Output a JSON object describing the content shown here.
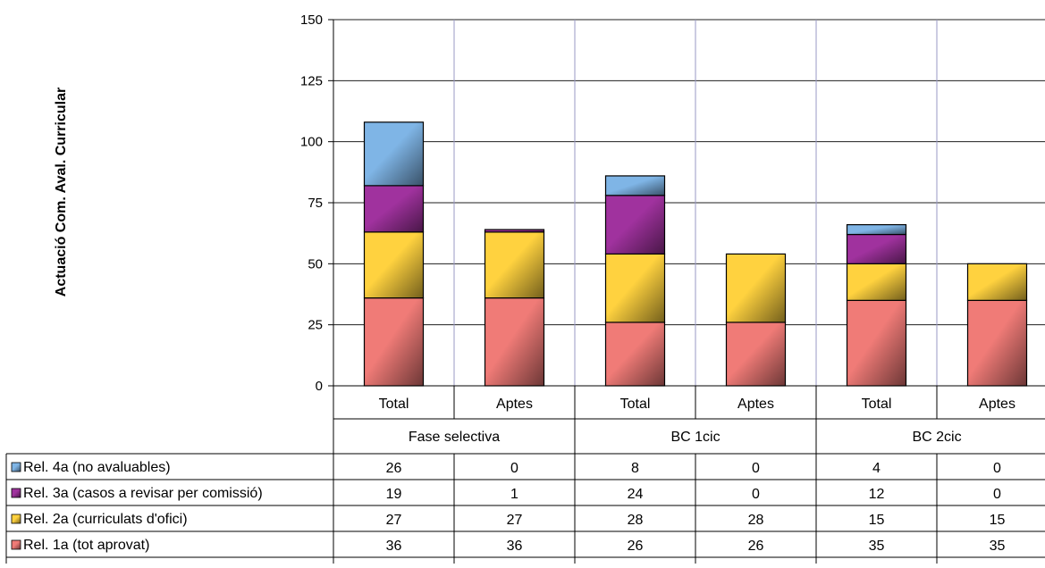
{
  "chart_data": {
    "type": "bar",
    "stacked": true,
    "ylabel": "Actuació Com. Aval. Curricular",
    "ylim": [
      0,
      150
    ],
    "yticks": [
      0,
      25,
      50,
      75,
      100,
      125,
      150
    ],
    "grid": true,
    "categories": [
      "Total",
      "Aptes",
      "Total",
      "Aptes",
      "Total",
      "Aptes"
    ],
    "groups": [
      {
        "label": "Fase selectiva",
        "span": [
          0,
          1
        ]
      },
      {
        "label": "BC 1cic",
        "span": [
          2,
          3
        ]
      },
      {
        "label": "BC 2cic",
        "span": [
          4,
          5
        ]
      }
    ],
    "legend_placement": "data-table-left",
    "series": [
      {
        "name": "Rel. 1a (tot aprovat)",
        "values": [
          36,
          36,
          26,
          26,
          35,
          35
        ],
        "color": "#F07B77"
      },
      {
        "name": "Rel. 2a (curriculats d'ofici)",
        "values": [
          27,
          27,
          28,
          28,
          15,
          15
        ],
        "color": "#FFD23F"
      },
      {
        "name": "Rel. 3a (casos a revisar per comissió)",
        "values": [
          19,
          1,
          24,
          0,
          12,
          0
        ],
        "color": "#A0329E"
      },
      {
        "name": "Rel. 4a (no avaluables)",
        "values": [
          26,
          0,
          8,
          0,
          4,
          0
        ],
        "color": "#7FB5E6"
      }
    ],
    "table_rows_order": [
      3,
      2,
      1,
      0
    ]
  }
}
